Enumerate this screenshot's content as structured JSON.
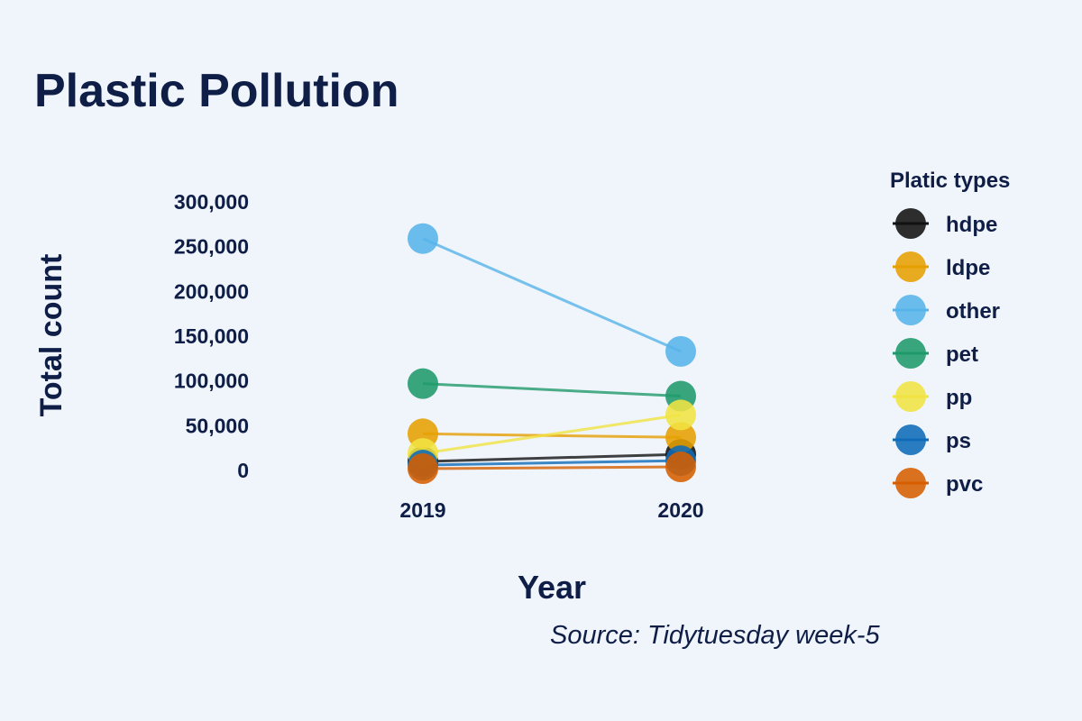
{
  "chart_data": {
    "type": "line",
    "title": "Plastic Pollution",
    "xlabel": "Year",
    "ylabel": "Total count",
    "caption": "Source: Tidytuesday week-5",
    "categories": [
      "2019",
      "2020"
    ],
    "ylim": [
      0,
      300000
    ],
    "yticks": [
      0,
      50000,
      100000,
      150000,
      200000,
      250000,
      300000
    ],
    "ytick_labels": [
      "0",
      "50,000",
      "100,000",
      "150,000",
      "200,000",
      "250,000",
      "300,000"
    ],
    "grid": false,
    "legend": {
      "title": "Platic types",
      "position": "right"
    },
    "series": [
      {
        "name": "hdpe",
        "values": [
          10000,
          18000
        ],
        "color": "#111111"
      },
      {
        "name": "ldpe",
        "values": [
          41000,
          37000
        ],
        "color": "#e69f00"
      },
      {
        "name": "other",
        "values": [
          259000,
          133000
        ],
        "color": "#56b4e9"
      },
      {
        "name": "pet",
        "values": [
          97000,
          83000
        ],
        "color": "#1f9a6a"
      },
      {
        "name": "pp",
        "values": [
          19000,
          62000
        ],
        "color": "#f0e442"
      },
      {
        "name": "ps",
        "values": [
          6000,
          11000
        ],
        "color": "#0e6bb8"
      },
      {
        "name": "pvc",
        "values": [
          2000,
          4000
        ],
        "color": "#d55e00"
      }
    ]
  }
}
